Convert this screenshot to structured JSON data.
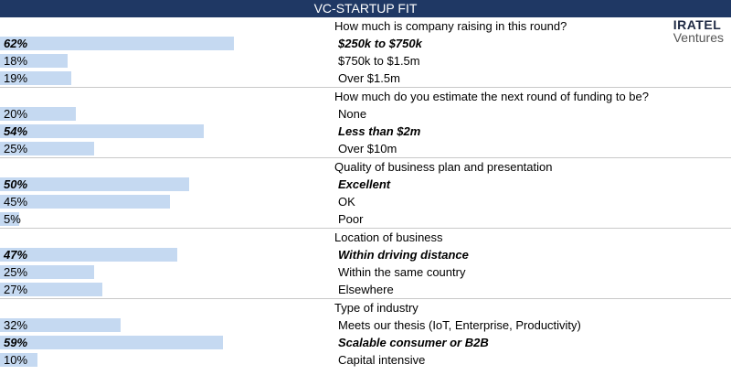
{
  "title": "VC-STARTUP FIT",
  "logo": {
    "line1": "IRATEL",
    "line2": "Ventures"
  },
  "chart_data": {
    "type": "bar",
    "title": "VC-STARTUP FIT",
    "groups": [
      {
        "question": "How much is company raising in this round?",
        "options": [
          {
            "label": "$250k to $750k",
            "value": 62,
            "pct_label": "62%",
            "selected": true
          },
          {
            "label": "$750k to $1.5m",
            "value": 18,
            "pct_label": "18%",
            "selected": false
          },
          {
            "label": "Over $1.5m",
            "value": 19,
            "pct_label": "19%",
            "selected": false
          }
        ]
      },
      {
        "question": "How much do you estimate the next round of funding to be?",
        "options": [
          {
            "label": "None",
            "value": 20,
            "pct_label": "20%",
            "selected": false
          },
          {
            "label": "Less than $2m",
            "value": 54,
            "pct_label": "54%",
            "selected": true
          },
          {
            "label": "Over $10m",
            "value": 25,
            "pct_label": "25%",
            "selected": false
          }
        ]
      },
      {
        "question": "Quality of business plan and presentation",
        "options": [
          {
            "label": "Excellent",
            "value": 50,
            "pct_label": "50%",
            "selected": true
          },
          {
            "label": "OK",
            "value": 45,
            "pct_label": "45%",
            "selected": false
          },
          {
            "label": "Poor",
            "value": 5,
            "pct_label": "5%",
            "selected": false
          }
        ]
      },
      {
        "question": "Location of business",
        "options": [
          {
            "label": "Within driving distance",
            "value": 47,
            "pct_label": "47%",
            "selected": true
          },
          {
            "label": "Within the same country",
            "value": 25,
            "pct_label": "25%",
            "selected": false
          },
          {
            "label": "Elsewhere",
            "value": 27,
            "pct_label": "27%",
            "selected": false
          }
        ]
      },
      {
        "question": "Type of industry",
        "options": [
          {
            "label": "Meets our thesis (IoT, Enterprise, Productivity)",
            "value": 32,
            "pct_label": "32%",
            "selected": false
          },
          {
            "label": "Scalable consumer or B2B",
            "value": 59,
            "pct_label": "59%",
            "selected": true
          },
          {
            "label": "Capital intensive",
            "value": 10,
            "pct_label": "10%",
            "selected": false
          }
        ]
      }
    ],
    "xlim": [
      0,
      100
    ],
    "bar_color": "#c5d9f1",
    "header_color": "#1f3864"
  }
}
